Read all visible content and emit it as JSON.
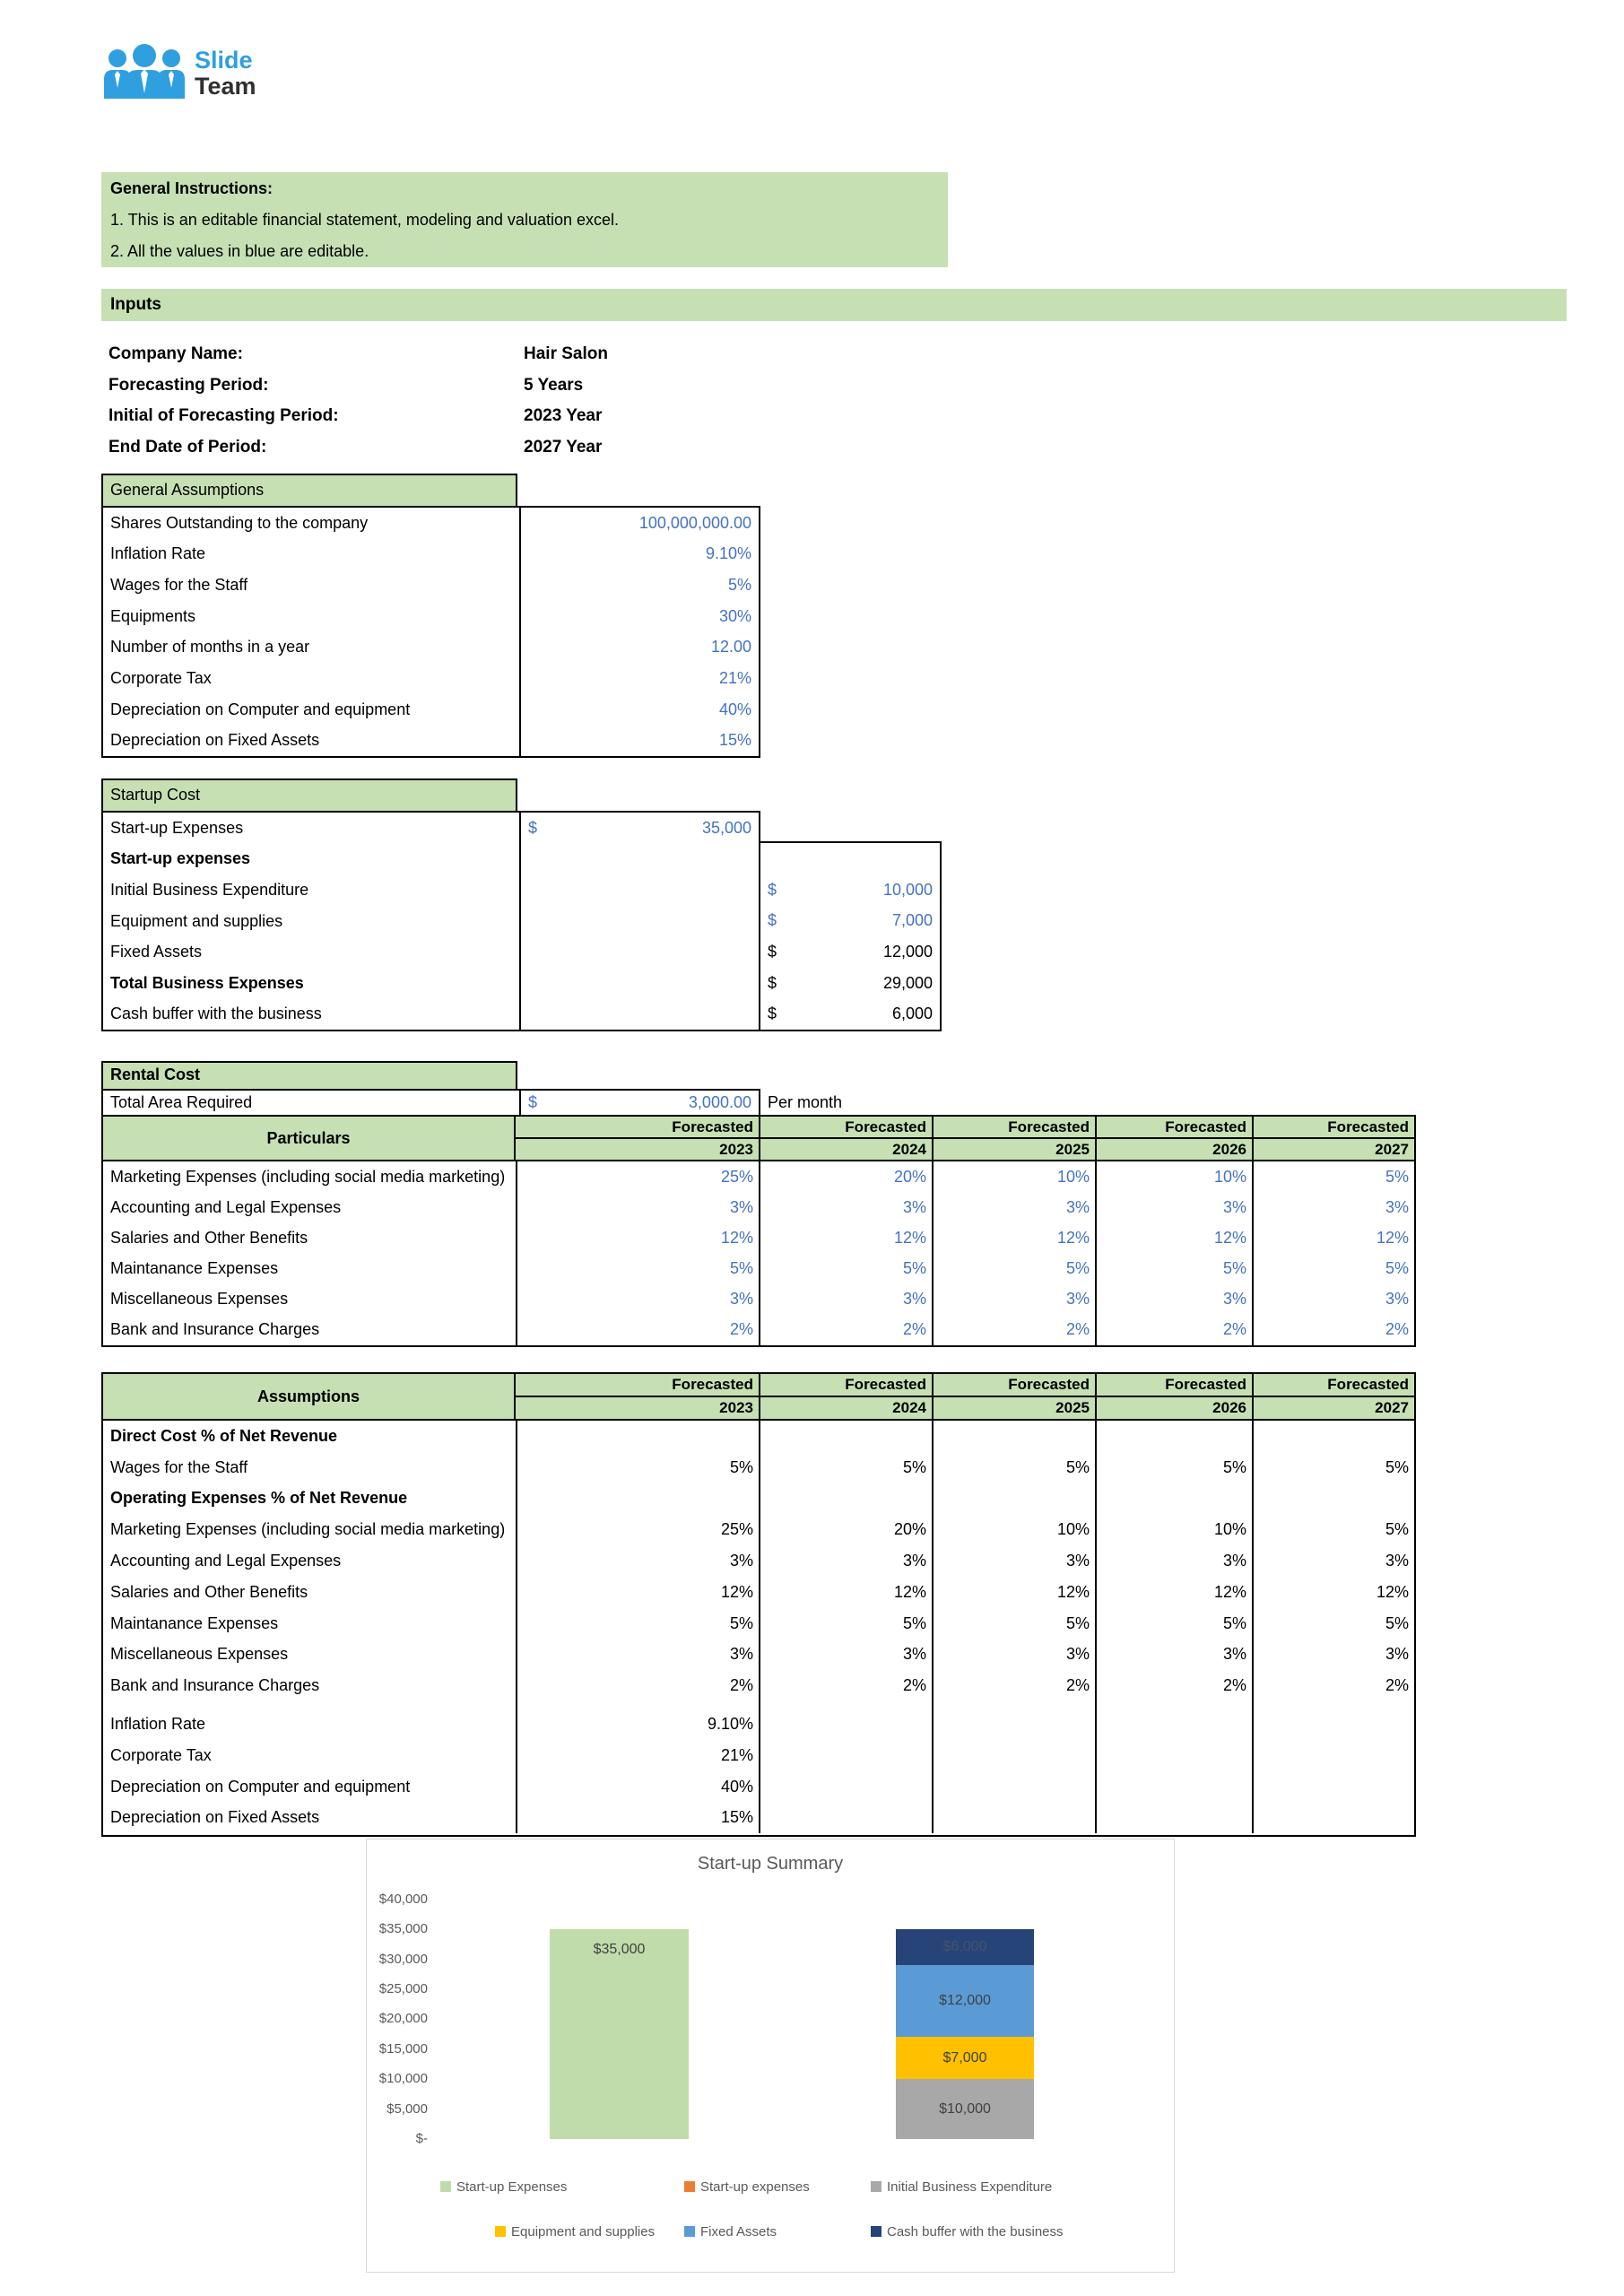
{
  "logo": {
    "line1": "Slide",
    "line2": "Team"
  },
  "instructions": {
    "title": "General Instructions:",
    "lines": [
      "1. This is an editable financial statement, modeling and valuation excel.",
      "2. All the values in blue are editable."
    ]
  },
  "inputs_label": "Inputs",
  "company": {
    "rows": [
      {
        "label": "Company Name:",
        "value": "Hair Salon"
      },
      {
        "label": "Forecasting Period:",
        "value": "5 Years"
      },
      {
        "label": "Initial of Forecasting Period:",
        "value": "2023 Year"
      },
      {
        "label": "End Date of Period:",
        "value": "2027 Year"
      }
    ]
  },
  "general_assumptions": {
    "header": "General Assumptions",
    "rows": [
      {
        "label": "Shares Outstanding to the company",
        "value": "100,000,000.00"
      },
      {
        "label": "Inflation Rate",
        "value": "9.10%"
      },
      {
        "label": "Wages for the Staff",
        "value": "5%"
      },
      {
        "label": "Equipments",
        "value": "30%"
      },
      {
        "label": "Number of months in a year",
        "value": "12.00"
      },
      {
        "label": "Corporate Tax",
        "value": "21%"
      },
      {
        "label": "Depreciation on Computer and equipment",
        "value": "40%"
      },
      {
        "label": "Depreciation on Fixed Assets",
        "value": "15%"
      }
    ]
  },
  "startup_cost": {
    "header": "Startup Cost",
    "rows": [
      {
        "label": "Start-up Expenses",
        "bold": false,
        "col": "mid",
        "currency": "$",
        "value": "35,000",
        "color": "blue"
      },
      {
        "label": "Start-up expenses",
        "bold": true,
        "col": "none"
      },
      {
        "label": "Initial Business Expenditure",
        "bold": false,
        "col": "right",
        "currency": "$",
        "value": "10,000",
        "color": "blue"
      },
      {
        "label": "Equipment and supplies",
        "bold": false,
        "col": "right",
        "currency": "$",
        "value": "7,000",
        "color": "blue"
      },
      {
        "label": "Fixed Assets",
        "bold": false,
        "col": "right",
        "currency": "$",
        "value": "12,000",
        "color": "black"
      },
      {
        "label": "Total Business Expenses",
        "bold": true,
        "col": "right",
        "currency": "$",
        "value": "29,000",
        "color": "black"
      },
      {
        "label": "Cash buffer with the business",
        "bold": false,
        "col": "right",
        "currency": "$",
        "value": "6,000",
        "color": "black"
      }
    ]
  },
  "rental_cost": {
    "header": "Rental Cost",
    "total_area": {
      "label": "Total Area Required",
      "currency": "$",
      "value": "3,000.00",
      "suffix": "Per month"
    },
    "table": {
      "corner": "Particulars",
      "col_header": "Forecasted",
      "years": [
        "2023",
        "2024",
        "2025",
        "2026",
        "2027"
      ],
      "rows": [
        {
          "label": "Marketing Expenses (including social media marketing)",
          "values": [
            "25%",
            "20%",
            "10%",
            "10%",
            "5%"
          ]
        },
        {
          "label": "Accounting and Legal Expenses",
          "values": [
            "3%",
            "3%",
            "3%",
            "3%",
            "3%"
          ]
        },
        {
          "label": "Salaries and Other Benefits",
          "values": [
            "12%",
            "12%",
            "12%",
            "12%",
            "12%"
          ]
        },
        {
          "label": "Maintanance Expenses",
          "values": [
            "5%",
            "5%",
            "5%",
            "5%",
            "5%"
          ]
        },
        {
          "label": "Miscellaneous Expenses",
          "values": [
            "3%",
            "3%",
            "3%",
            "3%",
            "3%"
          ]
        },
        {
          "label": "Bank and Insurance Charges",
          "values": [
            "2%",
            "2%",
            "2%",
            "2%",
            "2%"
          ]
        }
      ]
    }
  },
  "assumptions_table": {
    "corner": "Assumptions",
    "col_header": "Forecasted",
    "years": [
      "2023",
      "2024",
      "2025",
      "2026",
      "2027"
    ],
    "rows": [
      {
        "label": "Direct Cost % of Net Revenue",
        "bold": true,
        "values": [
          "",
          "",
          "",
          "",
          ""
        ]
      },
      {
        "label": "Wages for the Staff",
        "bold": false,
        "values": [
          "5%",
          "5%",
          "5%",
          "5%",
          "5%"
        ]
      },
      {
        "label": "Operating Expenses % of Net Revenue",
        "bold": true,
        "values": [
          "",
          "",
          "",
          "",
          ""
        ]
      },
      {
        "label": "Marketing Expenses (including social media marketing)",
        "bold": false,
        "values": [
          "25%",
          "20%",
          "10%",
          "10%",
          "5%"
        ]
      },
      {
        "label": "Accounting and Legal Expenses",
        "bold": false,
        "values": [
          "3%",
          "3%",
          "3%",
          "3%",
          "3%"
        ]
      },
      {
        "label": "Salaries and Other Benefits",
        "bold": false,
        "values": [
          "12%",
          "12%",
          "12%",
          "12%",
          "12%"
        ]
      },
      {
        "label": "Maintanance Expenses",
        "bold": false,
        "values": [
          "5%",
          "5%",
          "5%",
          "5%",
          "5%"
        ]
      },
      {
        "label": "Miscellaneous Expenses",
        "bold": false,
        "values": [
          "3%",
          "3%",
          "3%",
          "3%",
          "3%"
        ]
      },
      {
        "label": "Bank and Insurance Charges",
        "bold": false,
        "values": [
          "2%",
          "2%",
          "2%",
          "2%",
          "2%"
        ]
      },
      {
        "label": "Inflation Rate",
        "bold": false,
        "gap_before": true,
        "values": [
          "9.10%",
          "",
          "",
          "",
          ""
        ]
      },
      {
        "label": "Corporate Tax",
        "bold": false,
        "values": [
          "21%",
          "",
          "",
          "",
          ""
        ]
      },
      {
        "label": "Depreciation on Computer and equipment",
        "bold": false,
        "values": [
          "40%",
          "",
          "",
          "",
          ""
        ]
      },
      {
        "label": "Depreciation on Fixed Assets",
        "bold": false,
        "values": [
          "15%",
          "",
          "",
          "",
          ""
        ]
      }
    ]
  },
  "chart_data": {
    "type": "bar",
    "stacked": true,
    "title": "Start-up Summary",
    "ylim": [
      0,
      40000
    ],
    "y_ticks": [
      "$-",
      "$5,000",
      "$10,000",
      "$15,000",
      "$20,000",
      "$25,000",
      "$30,000",
      "$35,000",
      "$40,000"
    ],
    "grid": false,
    "legend_position": "bottom",
    "series": [
      {
        "name": "Start-up Expenses",
        "color": "#c1dcab",
        "column": 1,
        "value": 35000,
        "label": "$35,000",
        "label_color": "#404040"
      },
      {
        "name": "Start-up expenses",
        "color": "#ed7d31",
        "column": 0,
        "value": 0,
        "label": "",
        "label_color": "#404040"
      },
      {
        "name": "Initial Business Expenditure",
        "color": "#a8a8a8",
        "column": 2,
        "value": 10000,
        "label": "$10,000",
        "label_color": "#404040"
      },
      {
        "name": "Equipment and supplies",
        "color": "#ffc000",
        "column": 2,
        "value": 7000,
        "label": "$7,000",
        "label_color": "#404040"
      },
      {
        "name": "Fixed Assets",
        "color": "#5b9bd5",
        "column": 2,
        "value": 12000,
        "label": "$12,000",
        "label_color": "#404040"
      },
      {
        "name": "Cash buffer with the business",
        "color": "#264478",
        "column": 2,
        "value": 6000,
        "label": "$6,000",
        "label_color": "#44546a"
      }
    ],
    "legend_rows": [
      [
        "Start-up Expenses",
        "Start-up expenses",
        "Initial Business Expenditure"
      ],
      [
        "Equipment and supplies",
        "Fixed Assets",
        "Cash buffer with the business"
      ]
    ]
  }
}
